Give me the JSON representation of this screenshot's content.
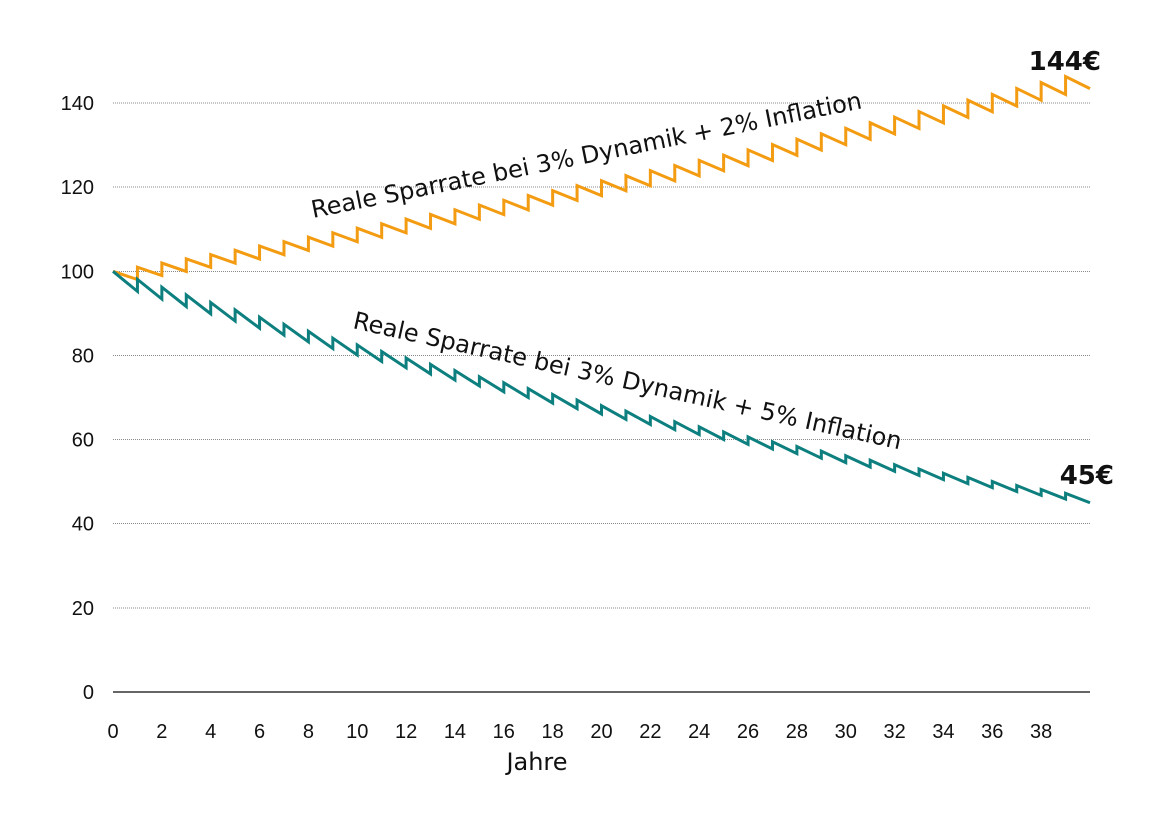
{
  "chart_data": {
    "type": "line",
    "xlabel": "Jahre",
    "ylabel": "",
    "xlim": [
      0,
      40
    ],
    "ylim": [
      0,
      150
    ],
    "x_ticks": [
      0,
      2,
      4,
      6,
      8,
      10,
      12,
      14,
      16,
      18,
      20,
      22,
      24,
      26,
      28,
      30,
      32,
      34,
      36,
      38
    ],
    "y_ticks": [
      0,
      20,
      40,
      60,
      80,
      100,
      120,
      140
    ],
    "grid": true,
    "series": [
      {
        "name": "Reale Sparrate bei 3% Dynamik + 2% Inflation",
        "color": "#f39c12",
        "dynamik": 0.03,
        "inflation": 0.02,
        "start": 100,
        "end_label": "144€"
      },
      {
        "name": "Reale Sparrate bei 3% Dynamik + 5% Inflation",
        "color": "#0e7f7f",
        "dynamik": 0.03,
        "inflation": 0.05,
        "start": 100,
        "end_label": "45€"
      }
    ]
  }
}
